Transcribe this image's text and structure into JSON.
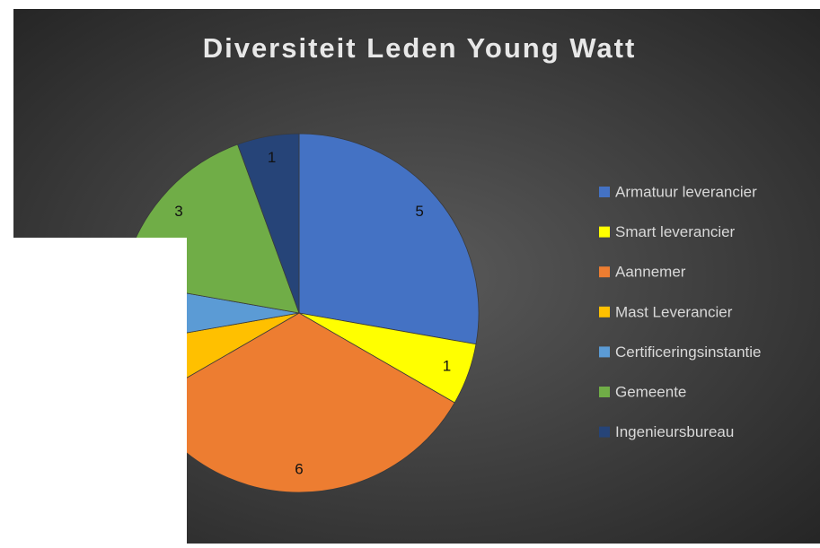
{
  "chart_data": {
    "type": "pie",
    "title": "Diversiteit Leden Young Watt",
    "categories": [
      "Armatuur leverancier",
      "Smart leverancier",
      "Aannemer",
      "Mast Leverancier",
      "Certificeringsinstantie",
      "Gemeente",
      "Ingenieursbureau"
    ],
    "values": [
      5,
      1,
      6,
      1,
      1,
      3,
      1
    ],
    "colors": [
      "#4472c4",
      "#ffff00",
      "#ed7d31",
      "#ffc000",
      "#5b9bd5",
      "#70ad47",
      "#264478"
    ],
    "legend": "right"
  }
}
